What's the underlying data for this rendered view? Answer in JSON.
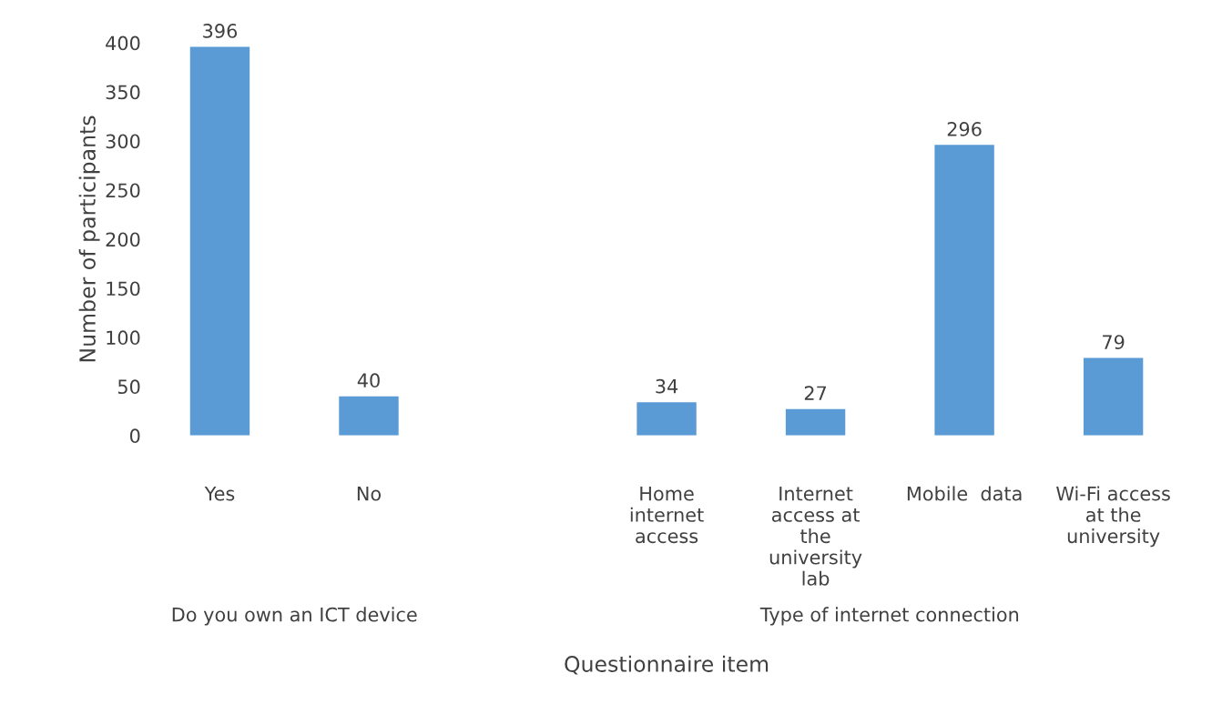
{
  "chart_data": {
    "type": "bar",
    "ylabel": "Number of participants",
    "xlabel": "Questionnaire item",
    "categories": [
      "Yes",
      "No",
      null,
      "Home\ninternet\naccess",
      "Internet\naccess at\nthe\nuniversity\nlab",
      "Mobile  data",
      "Wi-Fi access\nat the\nuniversity"
    ],
    "values": [
      396,
      40,
      null,
      34,
      27,
      296,
      79
    ],
    "color": "#5b9bd5",
    "ylim": [
      0,
      400
    ],
    "yticks": [
      0,
      50,
      100,
      150,
      200,
      250,
      300,
      350,
      400
    ],
    "grid": false,
    "data_labels": true,
    "annotations": [
      "Do you own an ICT device",
      "Type of internet connection"
    ]
  }
}
